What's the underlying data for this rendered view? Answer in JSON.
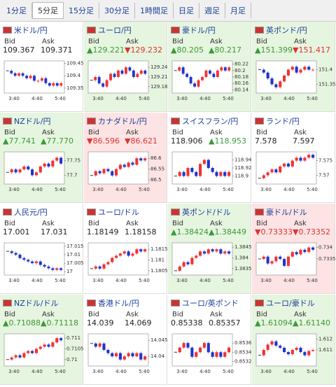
{
  "tabs": [
    "1分足",
    "5分足",
    "15分足",
    "30分足",
    "1時間足",
    "日足",
    "週足",
    "月足"
  ],
  "selected_tab": 1,
  "bid_label": "Bid",
  "ask_label": "Ask",
  "cards": [
    {
      "name": "米ドル/円",
      "bid": "109.367",
      "ask": "109.371",
      "color": "#ffffff",
      "chart": {
        "ylim": [
          109.33,
          109.46
        ],
        "yticks": [
          109.45,
          109.4,
          109.35
        ],
        "xticks": [
          "3:40",
          "4:40",
          "5:40"
        ],
        "closes": [
          109.42,
          109.41,
          109.4,
          109.41,
          109.4,
          109.39,
          109.4,
          109.38,
          109.38,
          109.39,
          109.37,
          109.36,
          109.37,
          109.36,
          109.37
        ]
      }
    },
    {
      "name": "ユーロ/円",
      "bid": "▲129.221",
      "ask": "▼129.232",
      "color": "#e6f5df",
      "chart": {
        "ylim": [
          129.16,
          129.26
        ],
        "yticks": [
          129.24,
          129.21,
          129.18
        ],
        "xticks": [
          "3:40",
          "4:40",
          "5:40"
        ],
        "closes": [
          129.2,
          129.21,
          129.19,
          129.18,
          129.2,
          129.22,
          129.21,
          129.23,
          129.22,
          129.24,
          129.23,
          129.21,
          129.22,
          129.23,
          129.22
        ]
      }
    },
    {
      "name": "豪ドル/円",
      "bid": "▲80.205",
      "ask": "▲80.217",
      "color": "#e6f5df",
      "chart": {
        "ylim": [
          80.13,
          80.23
        ],
        "yticks": [
          80.22,
          80.2,
          80.18,
          80.16,
          80.14
        ],
        "xticks": [
          "3:40",
          "4:40",
          "5:40"
        ],
        "closes": [
          80.2,
          80.21,
          80.19,
          80.18,
          80.16,
          80.15,
          80.17,
          80.18,
          80.2,
          80.19,
          80.18,
          80.2,
          80.21,
          80.2,
          80.21
        ]
      }
    },
    {
      "name": "英ポンド/円",
      "bid": "▲151.399",
      "ask": "▼151.417",
      "color": "#e6f5df",
      "chart": {
        "ylim": [
          151.32,
          151.43
        ],
        "yticks": [
          151.4,
          151.35
        ],
        "xticks": [
          "3:40",
          "4:40",
          "5:40"
        ],
        "closes": [
          151.4,
          151.39,
          151.37,
          151.35,
          151.34,
          151.36,
          151.38,
          151.4,
          151.41,
          151.39,
          151.4,
          151.41,
          151.4,
          151.4
        ]
      }
    },
    {
      "name": "NZドル/円",
      "bid": "▲77.741",
      "ask": "▲77.770",
      "color": "#e6f5df",
      "chart": {
        "ylim": [
          77.67,
          77.78
        ],
        "yticks": [
          77.75,
          77.7
        ],
        "xticks": [
          "3:40",
          "4:40",
          "5:40"
        ],
        "closes": [
          77.71,
          77.72,
          77.71,
          77.72,
          77.73,
          77.72,
          77.7,
          77.71,
          77.73,
          77.74,
          77.73,
          77.75,
          77.76,
          77.74
        ]
      }
    },
    {
      "name": "カナダドル/円",
      "bid": "▼86.596",
      "ask": "▼86.621",
      "color": "#fde3e3",
      "chart": {
        "ylim": [
          86.48,
          86.63
        ],
        "yticks": [
          86.6,
          86.55,
          86.5
        ],
        "xticks": [
          "3:40",
          "4:40",
          "5:40"
        ],
        "closes": [
          86.52,
          86.54,
          86.53,
          86.55,
          86.54,
          86.52,
          86.55,
          86.57,
          86.56,
          86.58,
          86.57,
          86.6,
          86.59,
          86.6
        ]
      }
    },
    {
      "name": "スイスフラン/円",
      "bid": "118.906",
      "ask": "▲118.953",
      "color": "#ffffff",
      "chart": {
        "ylim": [
          118.88,
          118.96
        ],
        "yticks": [
          118.94,
          118.92,
          118.9
        ],
        "xticks": [
          "3:40",
          "4:40",
          "5:40"
        ],
        "closes": [
          118.9,
          118.91,
          118.9,
          118.92,
          118.91,
          118.9,
          118.93,
          118.94,
          118.92,
          118.91,
          118.9,
          118.91,
          118.9,
          118.91
        ]
      }
    },
    {
      "name": "ランド/円",
      "bid": "7.578",
      "ask": "7.597",
      "color": "#ffffff",
      "chart": {
        "ylim": [
          7.567,
          7.578
        ],
        "yticks": [
          7.575,
          7.57
        ],
        "xticks": [
          "3:40",
          "4:40",
          "5:40"
        ],
        "closes": [
          7.569,
          7.57,
          7.571,
          7.572,
          7.571,
          7.573,
          7.574,
          7.573,
          7.575,
          7.576,
          7.575,
          7.576,
          7.577,
          7.576
        ]
      }
    },
    {
      "name": "人民元/円",
      "bid": "17.001",
      "ask": "17.031",
      "color": "#ffffff",
      "chart": {
        "ylim": [
          16.998,
          17.017
        ],
        "yticks": [
          17.015,
          17.01,
          17.005,
          17
        ],
        "xticks": [
          "3:40",
          "4:40",
          "5:40"
        ],
        "closes": [
          17.012,
          17.011,
          17.01,
          17.008,
          17.007,
          17.006,
          17.005,
          17.006,
          17.004,
          17.003,
          17.002,
          17.001,
          17.002,
          17.001
        ]
      }
    },
    {
      "name": "ユーロ/ドル",
      "bid": "1.18149",
      "ask": "1.18158",
      "color": "#ffffff",
      "chart": {
        "ylim": [
          1.1803,
          1.1818
        ],
        "yticks": [
          1.1815,
          1.181,
          1.1805
        ],
        "xticks": [
          "3:40",
          "4:40",
          "5:40"
        ],
        "closes": [
          1.1806,
          1.1807,
          1.1806,
          1.1808,
          1.1809,
          1.1811,
          1.1812,
          1.1813,
          1.1814,
          1.1812,
          1.1813,
          1.1815,
          1.1814,
          1.1815
        ]
      }
    },
    {
      "name": "英ポンド/ドル",
      "bid": "▲1.38424",
      "ask": "▲1.38449",
      "color": "#e6f5df",
      "chart": {
        "ylim": [
          1.3832,
          1.3847
        ],
        "yticks": [
          1.3845,
          1.384,
          1.3835
        ],
        "xticks": [
          "3:40",
          "4:40",
          "5:40"
        ],
        "closes": [
          1.3834,
          1.3836,
          1.3838,
          1.3837,
          1.384,
          1.3841,
          1.3843,
          1.3842,
          1.3844,
          1.3843,
          1.3844,
          1.3842,
          1.3843,
          1.3842
        ]
      }
    },
    {
      "name": "豪ドル/ドル",
      "bid": "▼0.73333",
      "ask": "▼0.73352",
      "color": "#fde3e3",
      "chart": {
        "ylim": [
          0.7328,
          0.7342
        ],
        "yticks": [
          0.734,
          0.7335
        ],
        "xticks": [
          "3:40",
          "4:40",
          "5:40"
        ],
        "closes": [
          0.7335,
          0.7336,
          0.7333,
          0.7334,
          0.7336,
          0.7335,
          0.7332,
          0.7336,
          0.7338,
          0.7337,
          0.7339,
          0.7338,
          0.734,
          0.7339
        ]
      }
    },
    {
      "name": "NZドル/ドル",
      "bid": "▲0.71088",
      "ask": "▲0.71118",
      "color": "#e6f5df",
      "chart": {
        "ylim": [
          0.7097,
          0.7112
        ],
        "yticks": [
          0.711,
          0.7105,
          0.71
        ],
        "xticks": [
          "3:40",
          "4:40",
          "5:40"
        ],
        "closes": [
          0.71,
          0.7101,
          0.7102,
          0.7101,
          0.7103,
          0.7104,
          0.7103,
          0.7105,
          0.7106,
          0.7107,
          0.7106,
          0.7108,
          0.711,
          0.7109
        ]
      }
    },
    {
      "name": "香港ドル/円",
      "bid": "14.039",
      "ask": "14.069",
      "color": "#ffffff",
      "chart": {
        "ylim": [
          14.037,
          14.047
        ],
        "yticks": [
          14.045,
          14.04
        ],
        "xticks": [
          "3:40",
          "4:40",
          "5:40"
        ],
        "closes": [
          14.044,
          14.043,
          14.044,
          14.042,
          14.041,
          14.04,
          14.041,
          14.039,
          14.04,
          14.041,
          14.04,
          14.041,
          14.039,
          14.04
        ]
      }
    },
    {
      "name": "ユーロ/英ポンド",
      "bid": "0.85338",
      "ask": "0.85357",
      "color": "#ffffff",
      "chart": {
        "ylim": [
          0.8531,
          0.8538
        ],
        "yticks": [
          0.8536,
          0.8534,
          0.8532
        ],
        "xticks": [
          "3:40",
          "4:40",
          "5:40"
        ],
        "closes": [
          0.8534,
          0.8535,
          0.8536,
          0.8535,
          0.8533,
          0.8534,
          0.8535,
          0.8536,
          0.8534,
          0.8533,
          0.8534,
          0.8533,
          0.8534,
          0.8535
        ]
      }
    },
    {
      "name": "ユーロ/豪ドル",
      "bid": "▲1.61094",
      "ask": "▲1.61140",
      "color": "#e6f5df",
      "chart": {
        "ylim": [
          1.6095,
          1.6125
        ],
        "yticks": [
          1.612,
          1.611
        ],
        "xticks": [
          "3:40",
          "4:40",
          "5:40"
        ],
        "closes": [
          1.6105,
          1.611,
          1.6115,
          1.6118,
          1.6114,
          1.6112,
          1.6108,
          1.6106,
          1.611,
          1.6112,
          1.6108,
          1.6105,
          1.6109,
          1.611
        ]
      }
    }
  ]
}
